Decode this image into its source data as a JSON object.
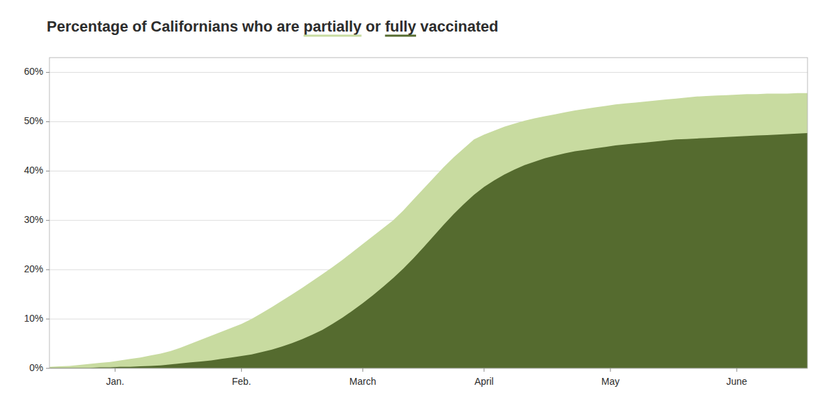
{
  "chart_data": {
    "type": "area",
    "title": "Percentage of Californians who are partially or fully vaccinated",
    "stacked": false,
    "grid": true,
    "xlim": [
      0,
      75
    ],
    "xticks": [
      {
        "value": 6.5,
        "label": "Jan."
      },
      {
        "value": 19,
        "label": "Feb."
      },
      {
        "value": 31,
        "label": "March"
      },
      {
        "value": 43,
        "label": "April"
      },
      {
        "value": 55.5,
        "label": "May"
      },
      {
        "value": 68,
        "label": "June"
      }
    ],
    "ylim": [
      0,
      0.63
    ],
    "yticks": [
      {
        "value": 0.0,
        "label": "0%"
      },
      {
        "value": 0.1,
        "label": "10%"
      },
      {
        "value": 0.2,
        "label": "20%"
      },
      {
        "value": 0.3,
        "label": "30%"
      },
      {
        "value": 0.4,
        "label": "40%"
      },
      {
        "value": 0.5,
        "label": "50%"
      },
      {
        "value": 0.6,
        "label": "60%"
      }
    ],
    "x": [
      0,
      1,
      2,
      3,
      4,
      5,
      6,
      7,
      8,
      9,
      10,
      11,
      12,
      13,
      14,
      15,
      16,
      17,
      18,
      19,
      20,
      21,
      22,
      23,
      24,
      25,
      26,
      27,
      28,
      29,
      30,
      31,
      32,
      33,
      34,
      35,
      36,
      37,
      38,
      39,
      40,
      41,
      42,
      43,
      44,
      45,
      46,
      47,
      48,
      49,
      50,
      51,
      52,
      53,
      54,
      55,
      56,
      57,
      58,
      59,
      60,
      61,
      62,
      63,
      64,
      65,
      66,
      67,
      68,
      69,
      70,
      71,
      72,
      73,
      74,
      75
    ],
    "series": [
      {
        "name": "partially",
        "color": "#c8dba0",
        "values": [
          0.003,
          0.004,
          0.005,
          0.007,
          0.009,
          0.011,
          0.013,
          0.016,
          0.019,
          0.022,
          0.026,
          0.03,
          0.035,
          0.042,
          0.05,
          0.058,
          0.066,
          0.074,
          0.082,
          0.09,
          0.1,
          0.112,
          0.124,
          0.137,
          0.15,
          0.163,
          0.177,
          0.191,
          0.205,
          0.22,
          0.236,
          0.252,
          0.268,
          0.284,
          0.3,
          0.32,
          0.342,
          0.364,
          0.386,
          0.408,
          0.428,
          0.446,
          0.464,
          0.474,
          0.482,
          0.49,
          0.496,
          0.502,
          0.507,
          0.511,
          0.515,
          0.519,
          0.523,
          0.526,
          0.529,
          0.532,
          0.535,
          0.537,
          0.539,
          0.541,
          0.543,
          0.545,
          0.547,
          0.549,
          0.551,
          0.552,
          0.553,
          0.554,
          0.555,
          0.556,
          0.556,
          0.557,
          0.557,
          0.557,
          0.558,
          0.558
        ]
      },
      {
        "name": "fully",
        "color": "#556b2f",
        "values": [
          0.001,
          0.001,
          0.001,
          0.001,
          0.001,
          0.002,
          0.002,
          0.003,
          0.003,
          0.004,
          0.005,
          0.006,
          0.008,
          0.01,
          0.012,
          0.014,
          0.016,
          0.019,
          0.022,
          0.025,
          0.028,
          0.033,
          0.038,
          0.044,
          0.051,
          0.059,
          0.068,
          0.078,
          0.09,
          0.103,
          0.117,
          0.132,
          0.148,
          0.165,
          0.183,
          0.202,
          0.223,
          0.245,
          0.268,
          0.291,
          0.313,
          0.333,
          0.352,
          0.368,
          0.381,
          0.393,
          0.403,
          0.412,
          0.419,
          0.426,
          0.431,
          0.436,
          0.44,
          0.443,
          0.446,
          0.449,
          0.452,
          0.454,
          0.456,
          0.458,
          0.46,
          0.462,
          0.464,
          0.465,
          0.466,
          0.467,
          0.468,
          0.469,
          0.47,
          0.471,
          0.472,
          0.473,
          0.474,
          0.475,
          0.476,
          0.477
        ]
      }
    ]
  }
}
